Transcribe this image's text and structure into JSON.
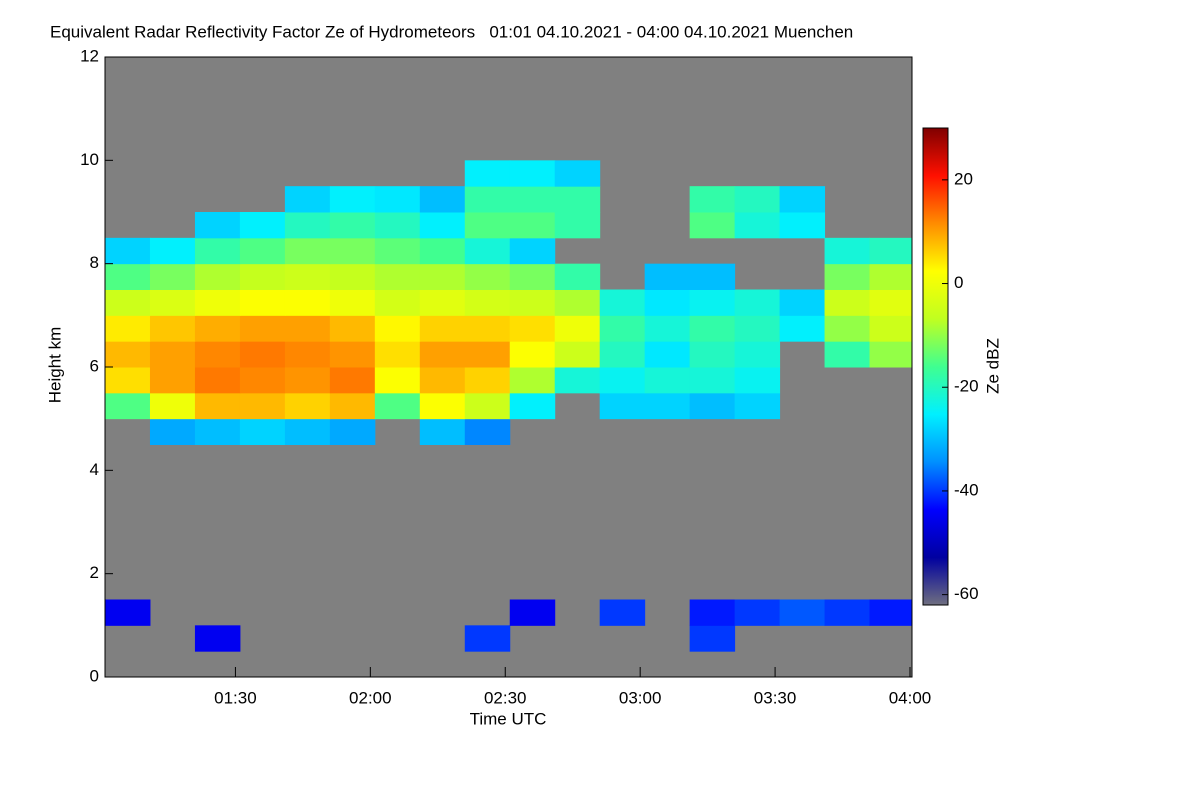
{
  "chart_data": {
    "type": "heatmap",
    "title": "Equivalent Radar Reflectivity Factor Ze of Hydrometeors   01:01 04.10.2021 - 04:00 04.10.2021 Muenchen",
    "x_label": "Time UTC",
    "y_label": "Height km",
    "colorbar_label": "Ze dBZ",
    "x": [
      "01:06",
      "01:16",
      "01:26",
      "01:36",
      "01:46",
      "01:56",
      "02:06",
      "02:16",
      "02:26",
      "02:36",
      "02:46",
      "02:56",
      "03:06",
      "03:16",
      "03:26",
      "03:36",
      "03:46",
      "03:56"
    ],
    "y": [
      0.25,
      0.75,
      1.25,
      1.75,
      2.25,
      2.75,
      3.25,
      3.75,
      4.25,
      4.75,
      5.25,
      5.75,
      6.25,
      6.75,
      7.25,
      7.75,
      8.25,
      8.75,
      9.25,
      9.75,
      10.25,
      10.75,
      11.25,
      11.75
    ],
    "z": [
      [
        null,
        null,
        null,
        null,
        null,
        null,
        null,
        null,
        null,
        null,
        null,
        null,
        null,
        null,
        null,
        null,
        null,
        null
      ],
      [
        null,
        null,
        -45,
        null,
        null,
        null,
        null,
        null,
        -40,
        null,
        null,
        null,
        null,
        -40,
        null,
        null,
        null,
        null
      ],
      [
        -45,
        null,
        null,
        null,
        null,
        null,
        null,
        null,
        null,
        -45,
        null,
        -40,
        null,
        -42,
        -40,
        -38,
        -40,
        -42
      ],
      [
        null,
        null,
        null,
        null,
        null,
        null,
        null,
        null,
        null,
        null,
        null,
        null,
        null,
        null,
        null,
        null,
        null,
        null
      ],
      [
        null,
        null,
        null,
        null,
        null,
        null,
        null,
        null,
        null,
        null,
        null,
        null,
        null,
        null,
        null,
        null,
        null,
        null
      ],
      [
        null,
        null,
        null,
        null,
        null,
        null,
        null,
        null,
        null,
        null,
        null,
        null,
        null,
        null,
        null,
        null,
        null,
        null
      ],
      [
        null,
        null,
        null,
        null,
        null,
        null,
        null,
        null,
        null,
        null,
        null,
        null,
        null,
        null,
        null,
        null,
        null,
        null
      ],
      [
        null,
        null,
        null,
        null,
        null,
        null,
        null,
        null,
        null,
        null,
        null,
        null,
        null,
        null,
        null,
        null,
        null,
        null
      ],
      [
        null,
        null,
        null,
        null,
        null,
        null,
        null,
        null,
        null,
        null,
        null,
        null,
        null,
        null,
        null,
        null,
        null,
        null
      ],
      [
        null,
        -32,
        -30,
        -28,
        -30,
        -32,
        null,
        -30,
        -35,
        null,
        null,
        null,
        null,
        null,
        null,
        null,
        null,
        null
      ],
      [
        -15,
        0,
        8,
        8,
        6,
        8,
        -15,
        2,
        -5,
        -25,
        null,
        -28,
        -28,
        -30,
        -28,
        null,
        null,
        null
      ],
      [
        5,
        10,
        13,
        12,
        11,
        13,
        2,
        8,
        6,
        -8,
        -22,
        -24,
        -22,
        -22,
        -24,
        null,
        null,
        null
      ],
      [
        8,
        10,
        12,
        13,
        12,
        11,
        5,
        10,
        10,
        2,
        -5,
        -20,
        -26,
        -20,
        -22,
        null,
        -18,
        -10
      ],
      [
        4,
        7,
        9,
        10,
        10,
        8,
        3,
        6,
        6,
        5,
        0,
        -18,
        -22,
        -18,
        -20,
        -25,
        -10,
        -5
      ],
      [
        -5,
        -3,
        0,
        2,
        2,
        0,
        -4,
        -2,
        -4,
        -5,
        -8,
        -22,
        -26,
        -24,
        -22,
        -28,
        -5,
        -2
      ],
      [
        -15,
        -12,
        -8,
        -6,
        -5,
        -6,
        -8,
        -8,
        -10,
        -12,
        -18,
        null,
        -30,
        -30,
        null,
        null,
        -12,
        -8
      ],
      [
        -28,
        -25,
        -18,
        -15,
        -12,
        -12,
        -14,
        -16,
        -22,
        -28,
        null,
        null,
        null,
        null,
        null,
        null,
        -22,
        -20
      ],
      [
        null,
        null,
        -28,
        -25,
        -20,
        -18,
        -20,
        -25,
        -15,
        -15,
        -18,
        null,
        null,
        -15,
        -22,
        -25,
        null,
        null
      ],
      [
        null,
        null,
        null,
        null,
        -28,
        -25,
        -26,
        -30,
        -18,
        -18,
        -18,
        null,
        null,
        -18,
        -20,
        -28,
        null,
        null
      ],
      [
        null,
        null,
        null,
        null,
        null,
        null,
        null,
        null,
        -25,
        -25,
        -28,
        null,
        null,
        null,
        null,
        null,
        null,
        null
      ],
      [
        null,
        null,
        null,
        null,
        null,
        null,
        null,
        null,
        null,
        null,
        null,
        null,
        null,
        null,
        null,
        null,
        null,
        null
      ],
      [
        null,
        null,
        null,
        null,
        null,
        null,
        null,
        null,
        null,
        null,
        null,
        null,
        null,
        null,
        null,
        null,
        null,
        null
      ],
      [
        null,
        null,
        null,
        null,
        null,
        null,
        null,
        null,
        null,
        null,
        null,
        null,
        null,
        null,
        null,
        null,
        null,
        null
      ],
      [
        null,
        null,
        null,
        null,
        null,
        null,
        null,
        null,
        null,
        null,
        null,
        null,
        null,
        null,
        null,
        null,
        null,
        null
      ]
    ],
    "xlim": [
      "01:01",
      "04:00"
    ],
    "xticks": [
      "01:30",
      "02:00",
      "02:30",
      "03:00",
      "03:30",
      "04:00"
    ],
    "ylim": [
      0,
      12
    ],
    "yticks": [
      0,
      2,
      4,
      6,
      8,
      10,
      12
    ],
    "zlim": [
      -62,
      30
    ],
    "zticks": [
      -60,
      -40,
      -20,
      0,
      20
    ],
    "background": "#808080",
    "colorscale": [
      "#6f6f80",
      "#0000a0",
      "#0000ff",
      "#0090ff",
      "#00f0ff",
      "#40ff90",
      "#c0ff20",
      "#ffff00",
      "#ff8c00",
      "#ff1000",
      "#800000"
    ]
  }
}
